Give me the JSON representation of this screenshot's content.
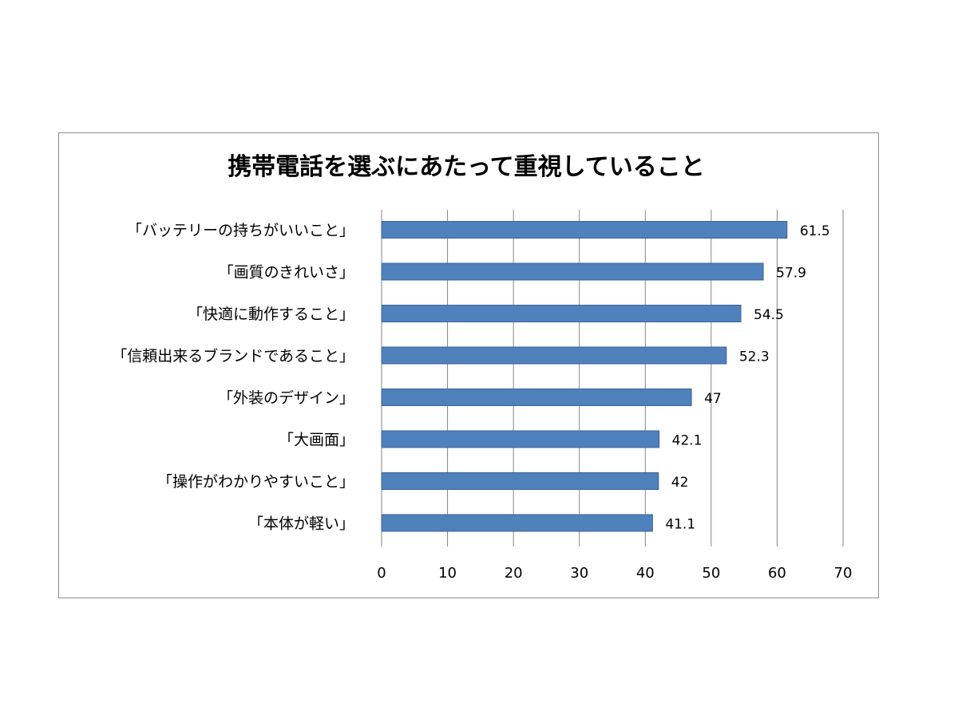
{
  "chart_data": {
    "type": "bar",
    "orientation": "horizontal",
    "title": "携帯電話を選ぶにあたって重視していること",
    "categories": [
      "「バッテリーの持ちがいいこと」",
      "「画質のきれいさ」",
      "「快適に動作すること」",
      "「信頼出来るブランドであること」",
      "「外装のデザイン」",
      "「大画面」",
      "「操作がわかりやすいこと」",
      "「本体が軽い」"
    ],
    "values": [
      61.5,
      57.9,
      54.5,
      52.3,
      47,
      42.1,
      42,
      41.1
    ],
    "data_labels": [
      "61.5",
      "57.9",
      "54.5",
      "52.3",
      "47",
      "42.1",
      "42",
      "41.1"
    ],
    "xlim": [
      0,
      70
    ],
    "x_ticks": [
      0,
      10,
      20,
      30,
      40,
      50,
      60,
      70
    ],
    "xlabel": "",
    "ylabel": "",
    "grid": "vertical",
    "legend": "none",
    "bar_color": "#4F81BD",
    "bar_edge_color": "#3A6496",
    "gridline_color": "#868686",
    "border_color": "#8c8c8c"
  }
}
